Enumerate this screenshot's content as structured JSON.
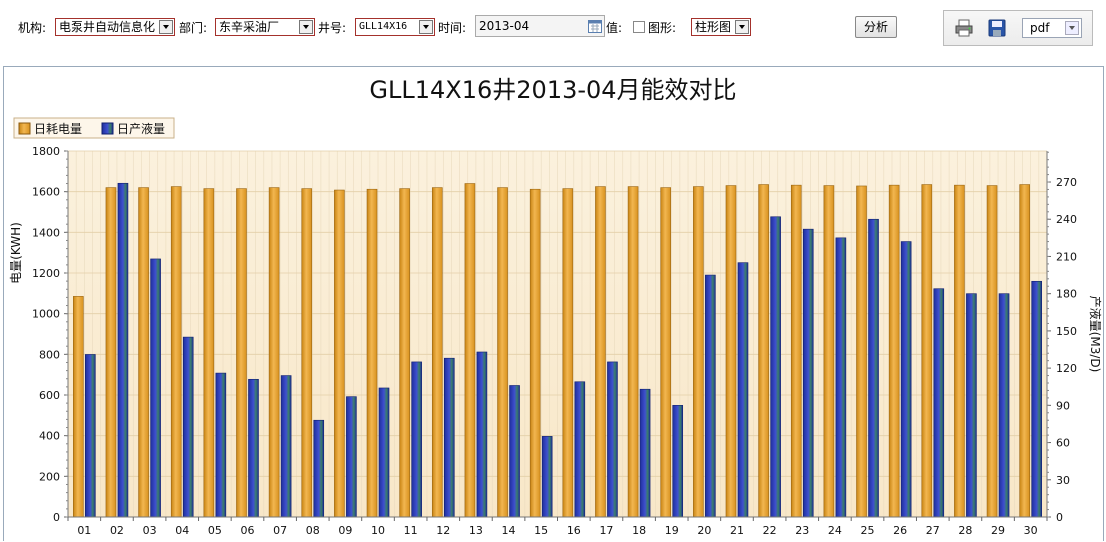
{
  "toolbar": {
    "org_label": "机构:",
    "org_value": "电泵井自动信息化",
    "dept_label": "部门:",
    "dept_value": "东辛采油厂",
    "well_label": "井号:",
    "well_value": "GLL14X16",
    "time_label": "时间:",
    "time_value": "2013-04",
    "value_label": "值:",
    "graph_label": "图形:",
    "graph_value": "柱形图",
    "analyze_label": "分析",
    "format_value": "pdf"
  },
  "colors": {
    "power": "#e8a23a",
    "liquid": "#2e3fb8",
    "plot_bg": "#faeed8",
    "select_border": "#a4312c"
  },
  "chart_data": {
    "type": "bar",
    "title": "GLL14X16井2013-04月能效对比",
    "ylabel": "电量(KWH)",
    "y2label": "产液量(M3/D)",
    "ylim": [
      0,
      1800
    ],
    "y2lim": [
      0,
      295
    ],
    "yticks": [
      0,
      200,
      400,
      600,
      800,
      1000,
      1200,
      1400,
      1600,
      1800
    ],
    "y2ticks": [
      0,
      30,
      60,
      90,
      120,
      150,
      180,
      210,
      240,
      270
    ],
    "legend_position": "top-left",
    "grid": true,
    "categories": [
      "01",
      "02",
      "03",
      "04",
      "05",
      "06",
      "07",
      "08",
      "09",
      "10",
      "11",
      "12",
      "13",
      "14",
      "15",
      "16",
      "17",
      "18",
      "19",
      "20",
      "21",
      "22",
      "23",
      "24",
      "25",
      "26",
      "27",
      "28",
      "29",
      "30"
    ],
    "series": [
      {
        "name": "日耗电量",
        "axis": "left",
        "values": [
          1085,
          1620,
          1620,
          1625,
          1615,
          1615,
          1620,
          1615,
          1608,
          1612,
          1615,
          1620,
          1640,
          1620,
          1612,
          1615,
          1625,
          1625,
          1620,
          1625,
          1630,
          1635,
          1632,
          1630,
          1628,
          1632,
          1635,
          1632,
          1630,
          1635
        ]
      },
      {
        "name": "日产液量",
        "axis": "right",
        "values": [
          131,
          269,
          208,
          145,
          116,
          111,
          114,
          78,
          97,
          104,
          125,
          128,
          133,
          106,
          65,
          109,
          125,
          103,
          90,
          195,
          205,
          242,
          232,
          225,
          240,
          222,
          184,
          180,
          180,
          190
        ]
      }
    ]
  }
}
